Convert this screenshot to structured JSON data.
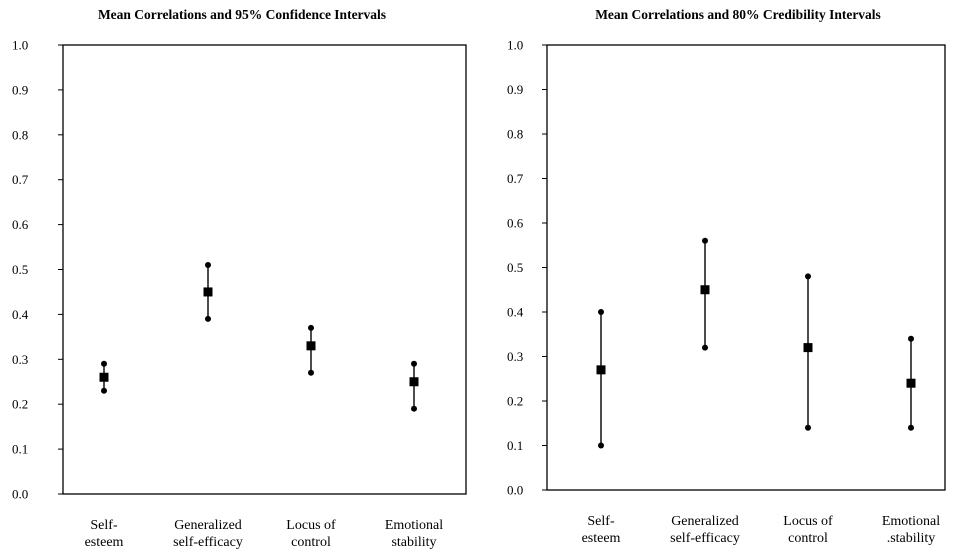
{
  "chart_data": [
    {
      "type": "scatter",
      "title": "Mean Correlations and 95% Confidence Intervals",
      "categories": [
        [
          "Self-",
          "esteem"
        ],
        [
          "Generalized",
          "self-efficacy"
        ],
        [
          "Locus of",
          "control"
        ],
        [
          "Emotional",
          "stability"
        ]
      ],
      "mean": [
        0.26,
        0.45,
        0.33,
        0.25
      ],
      "lower": [
        0.23,
        0.39,
        0.27,
        0.19
      ],
      "upper": [
        0.29,
        0.51,
        0.37,
        0.29
      ],
      "ylim": [
        0.0,
        1.0
      ],
      "yticks": [
        "0.0",
        "0.1",
        "0.2",
        "0.3",
        "0.4",
        "0.5",
        "0.6",
        "0.7",
        "0.8",
        "0.9",
        "1.0"
      ],
      "grid": false
    },
    {
      "type": "scatter",
      "title": "Mean Correlations and 80% Credibility Intervals",
      "categories": [
        [
          "Self-",
          "esteem"
        ],
        [
          "Generalized",
          "self-efficacy"
        ],
        [
          "Locus of",
          "control"
        ],
        [
          "Emotional",
          ".stability"
        ]
      ],
      "mean": [
        0.27,
        0.45,
        0.32,
        0.24
      ],
      "lower": [
        0.1,
        0.32,
        0.14,
        0.14
      ],
      "upper": [
        0.4,
        0.56,
        0.48,
        0.34
      ],
      "ylim": [
        0.0,
        1.0
      ],
      "yticks": [
        "0.0",
        "0.1",
        "0.2",
        "0.3",
        "0.4",
        "0.5",
        "0.6",
        "0.7",
        "0.8",
        "0.9",
        "1.0"
      ],
      "grid": false
    }
  ]
}
